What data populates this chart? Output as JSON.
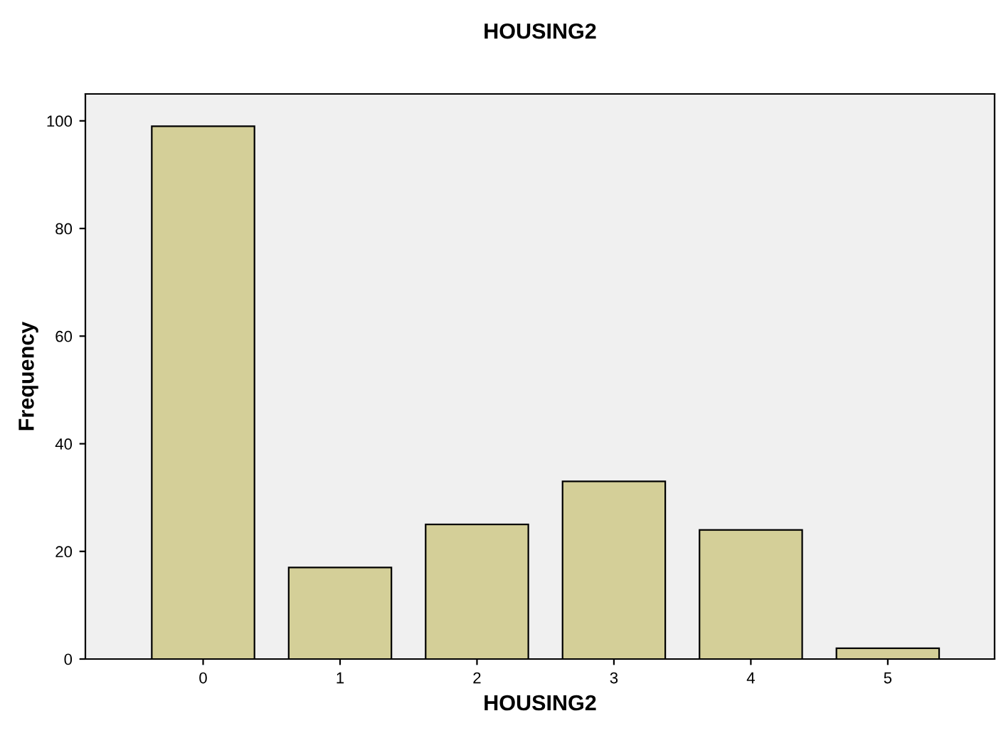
{
  "chart_data": {
    "type": "bar",
    "title": "HOUSING2",
    "xlabel": "HOUSING2",
    "ylabel": "Frequency",
    "categories": [
      "0",
      "1",
      "2",
      "3",
      "4",
      "5"
    ],
    "values": [
      99,
      17,
      25,
      33,
      24,
      2
    ],
    "color": "#d4cf98",
    "ylim": [
      0,
      105
    ],
    "yticks": [
      0,
      20,
      40,
      60,
      80,
      100
    ],
    "grid": false,
    "legend": false
  }
}
